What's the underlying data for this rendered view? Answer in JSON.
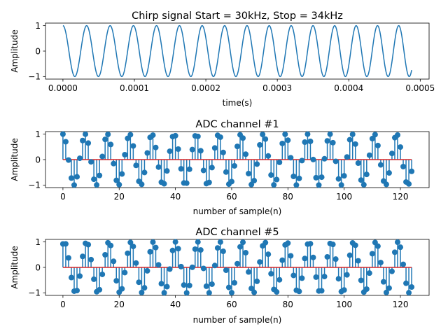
{
  "chart_data": [
    {
      "type": "line",
      "title": "Chirp signal Start = 30kHz, Stop = 34kHz",
      "xlabel": "time(s)",
      "ylabel": "Amplitude",
      "xlim": [
        -2.44e-05,
        0.0005124
      ],
      "ylim": [
        -1.1,
        1.1
      ],
      "xticks": [
        0,
        0.0001,
        0.0002,
        0.0003,
        0.0004,
        0.0005
      ],
      "xtick_labels": [
        "0.0000",
        "0.0001",
        "0.0002",
        "0.0003",
        "0.0004",
        "0.0005"
      ],
      "yticks": [
        -1,
        0,
        1
      ],
      "ytick_labels": [
        "−1",
        "0",
        "1"
      ],
      "signal": {
        "f_start_hz": 30000,
        "f_stop_hz": 34000,
        "t_start_s": 0,
        "t_end_s": 0.000488,
        "form": "cosine"
      },
      "color": "#1f77b4"
    },
    {
      "type": "stem",
      "title": "ADC channel #1",
      "xlabel": "number of sample(n)",
      "ylabel": "Amplitude",
      "xlim": [
        -6.2,
        130.2
      ],
      "ylim": [
        -1.1,
        1.1
      ],
      "xticks": [
        0,
        20,
        40,
        60,
        80,
        100,
        120
      ],
      "xtick_labels": [
        "0",
        "20",
        "40",
        "60",
        "80",
        "100",
        "120"
      ],
      "yticks": [
        -1,
        0,
        1
      ],
      "ytick_labels": [
        "−1",
        "0",
        "1"
      ],
      "n": 125,
      "normalized_frequency": 0.1264,
      "phase_rad": 0.0,
      "marker_color": "#1f77b4",
      "baseline_color": "#d62728"
    },
    {
      "type": "stem",
      "title": "ADC channel #5",
      "xlabel": "number of sample(n)",
      "ylabel": "Amplitude",
      "xlim": [
        -6.2,
        130.2
      ],
      "ylim": [
        -1.1,
        1.1
      ],
      "xticks": [
        0,
        20,
        40,
        60,
        80,
        100,
        120
      ],
      "xtick_labels": [
        "0",
        "20",
        "40",
        "60",
        "80",
        "100",
        "120"
      ],
      "yticks": [
        -1,
        0,
        1
      ],
      "ytick_labels": [
        "−1",
        "0",
        "1"
      ],
      "n": 125,
      "normalized_frequency": 0.1264,
      "phase_rad": -0.4,
      "marker_color": "#1f77b4",
      "baseline_color": "#d62728"
    }
  ]
}
